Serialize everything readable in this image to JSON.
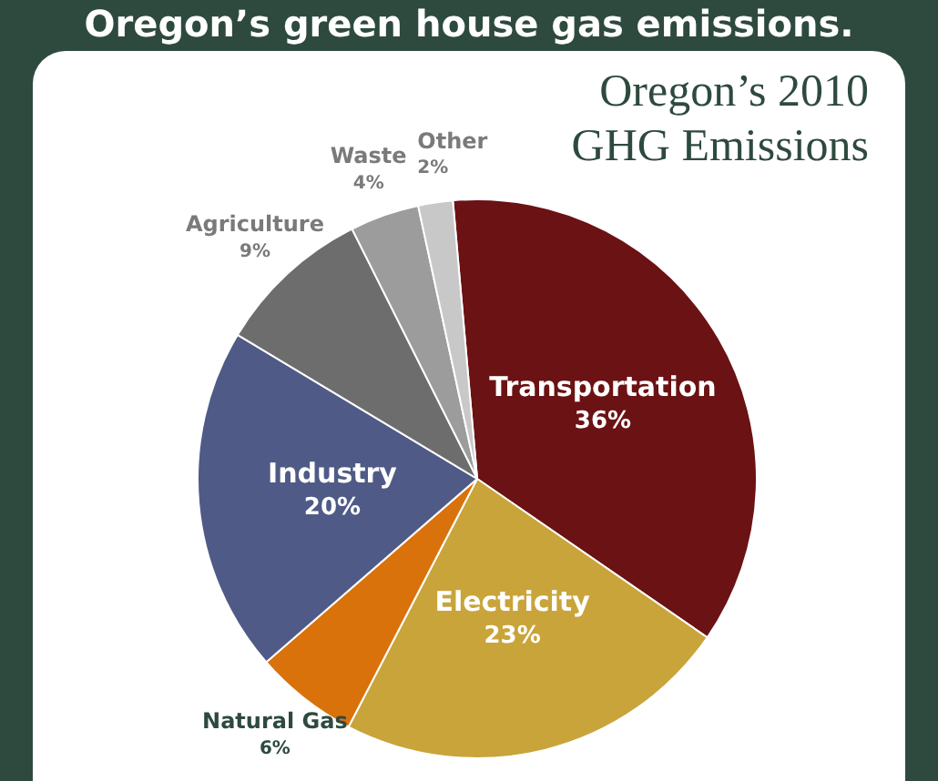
{
  "chart_data": {
    "type": "pie",
    "title": "Oregon’s green house gas emissions.",
    "subtitle": "Oregon’s 2010 GHG Emissions",
    "categories": [
      "Transportation",
      "Electricity",
      "Natural Gas",
      "Industry",
      "Agriculture",
      "Waste",
      "Other"
    ],
    "values": [
      36,
      23,
      6,
      20,
      9,
      4,
      2
    ],
    "colors": [
      "#6b1214",
      "#c9a43a",
      "#d9720b",
      "#4f5b86",
      "#6d6d6d",
      "#9c9c9c",
      "#c8c8c8"
    ],
    "value_labels": [
      "36%",
      "23%",
      "6%",
      "20%",
      "9%",
      "4%",
      "2%"
    ],
    "legend": false
  }
}
